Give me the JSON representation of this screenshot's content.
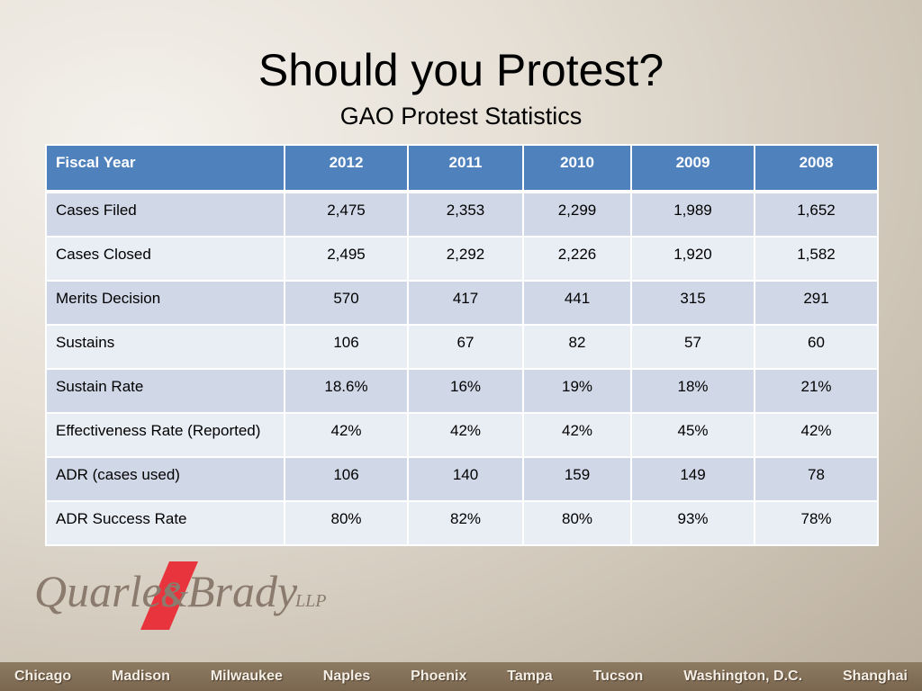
{
  "slide": {
    "title": "Should you Protest?",
    "subtitle": "GAO Protest Statistics"
  },
  "table": {
    "headers": [
      "Fiscal Year",
      "2012",
      "2011",
      "2010",
      "2009",
      "2008"
    ],
    "rows": [
      [
        "Cases Filed",
        "2,475",
        "2,353",
        "2,299",
        "1,989",
        "1,652"
      ],
      [
        "Cases Closed",
        "2,495",
        "2,292",
        "2,226",
        "1,920",
        "1,582"
      ],
      [
        "Merits Decision",
        "570",
        "417",
        "441",
        "315",
        "291"
      ],
      [
        "Sustains",
        "106",
        "67",
        "82",
        "57",
        "60"
      ],
      [
        "Sustain Rate",
        "18.6%",
        "16%",
        "19%",
        "18%",
        "21%"
      ],
      [
        "Effectiveness Rate (Reported)",
        "42%",
        "42%",
        "42%",
        "45%",
        "42%"
      ],
      [
        "ADR (cases used)",
        "106",
        "140",
        "159",
        "149",
        "78"
      ],
      [
        "ADR Success Rate",
        "80%",
        "82%",
        "80%",
        "93%",
        "78%"
      ]
    ]
  },
  "logo": {
    "text_left": "Quarles",
    "text_right": "Brady",
    "suffix": "LLP",
    "ampersand": "&"
  },
  "footer": {
    "offices": [
      "Chicago",
      "Madison",
      "Milwaukee",
      "Naples",
      "Phoenix",
      "Tampa",
      "Tucson",
      "Washington, D.C.",
      "Shanghai"
    ]
  },
  "colors": {
    "header_bg": "#4f81bd",
    "row_odd": "#d0d8e8",
    "row_even": "#e9edf4",
    "logo_text": "#8a7b6e",
    "logo_slash": "#e8343c",
    "footer_bg": "#7f6b54"
  }
}
